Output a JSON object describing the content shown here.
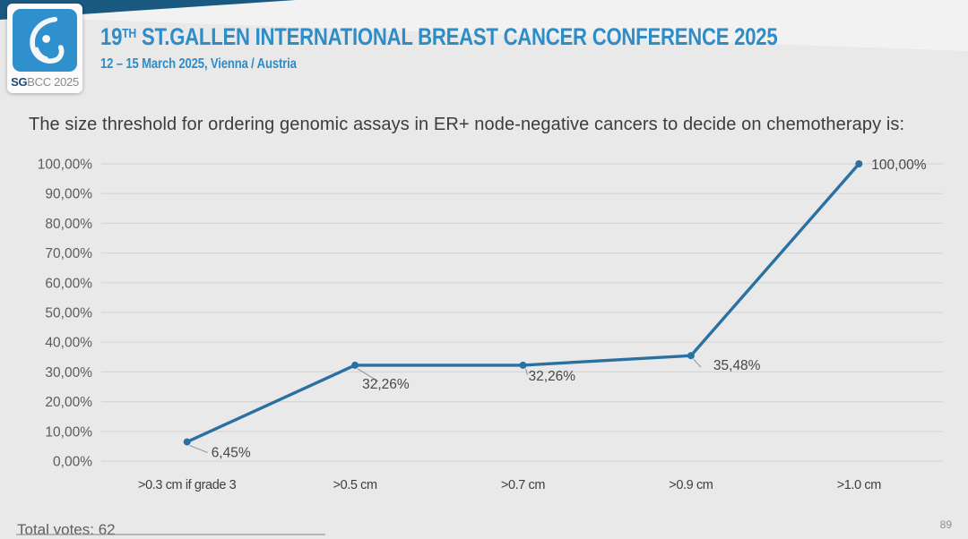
{
  "header": {
    "logo": {
      "icon": "breast-logo-icon",
      "badge_bold": "SG",
      "badge_rest": "BCC 2025"
    },
    "title_num": "19",
    "title_sup": "TH",
    "title_rest": "ST.GALLEN INTERNATIONAL BREAST CANCER CONFERENCE 2025",
    "subtitle": "12 – 15 March 2025, Vienna / Austria"
  },
  "question": "The size threshold for ordering genomic assays in ER+ node-negative cancers to decide on chemotherapy is:",
  "chart_data": {
    "type": "line",
    "title": "",
    "xlabel": "",
    "ylabel": "",
    "categories": [
      ">0.3 cm if grade 3",
      ">0.5 cm",
      ">0.7 cm",
      ">0.9 cm",
      ">1.0 cm"
    ],
    "values": [
      6.45,
      32.26,
      32.26,
      35.48,
      100.0
    ],
    "point_labels": [
      "6,45%",
      "32,26%",
      "32,26%",
      "35,48%",
      "100,00%"
    ],
    "ylim": [
      0,
      100
    ],
    "ytick_step": 10,
    "ytick_labels": [
      "0,00%",
      "10,00%",
      "20,00%",
      "30,00%",
      "40,00%",
      "50,00%",
      "60,00%",
      "70,00%",
      "80,00%",
      "90,00%",
      "100,00%"
    ],
    "grid": true,
    "legend": "none",
    "line_color": "#2A71A1"
  },
  "footer": {
    "total_votes": "Total votes: 62",
    "page_number": "89"
  },
  "colors": {
    "background": "#E9E9EA",
    "band_dark": "#1A5980",
    "logo_blue": "#3090CE",
    "accent_blue": "#2E8CC7",
    "line_blue": "#2A71A1",
    "grid_gray": "#D6D6D6"
  }
}
